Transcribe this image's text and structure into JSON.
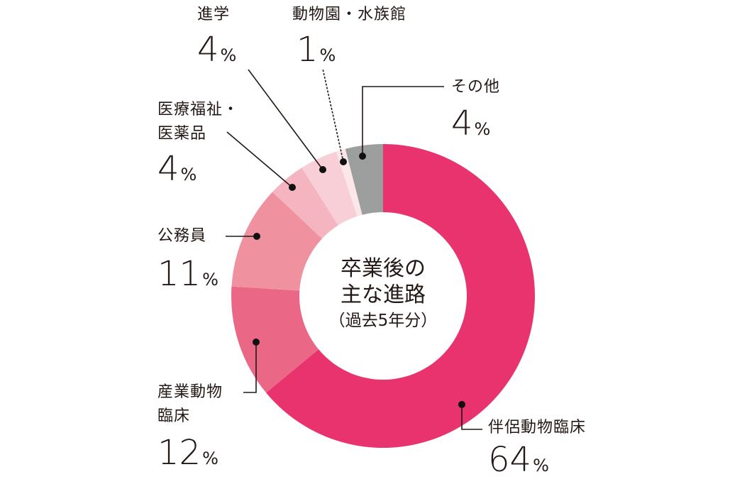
{
  "chart_data": {
    "type": "pie",
    "donut": true,
    "title": "卒業後の主な進路（過去5年分）",
    "center_text": [
      "卒業後の",
      "主な進路",
      "（過去5年分）"
    ],
    "unit": "%",
    "slices": [
      {
        "label": "伴侶動物臨床",
        "label_lines": [
          "伴侶動物臨床"
        ],
        "value": 64,
        "color": "#e8336f"
      },
      {
        "label": "産業動物臨床",
        "label_lines": [
          "産業動物",
          "臨床"
        ],
        "value": 12,
        "color": "#ea6886"
      },
      {
        "label": "公務員",
        "label_lines": [
          "公務員"
        ],
        "value": 11,
        "color": "#ef919e"
      },
      {
        "label": "医療福祉・医薬品",
        "label_lines": [
          "医療福祉・",
          "医薬品"
        ],
        "value": 4,
        "color": "#f4b5c1"
      },
      {
        "label": "進学",
        "label_lines": [
          "進学"
        ],
        "value": 4,
        "color": "#f8cfd7"
      },
      {
        "label": "動物園・水族館",
        "label_lines": [
          "動物園・水族館"
        ],
        "value": 1,
        "color": "#fbe6ea"
      },
      {
        "label": "その他",
        "label_lines": [
          "その他"
        ],
        "value": 4,
        "color": "#9d9e9e"
      }
    ]
  }
}
